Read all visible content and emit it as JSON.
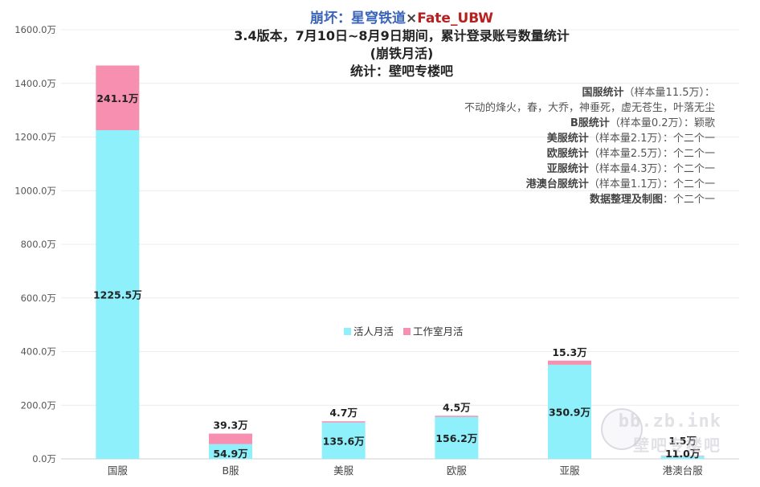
{
  "header": {
    "title_part1": "崩坏：星穹铁道",
    "title_sep": "×",
    "title_part2": "Fate_UBW",
    "line2": "3.4版本，7月10日~8月9日期间，累计登录账号数量统计",
    "line3": "(崩铁月活)",
    "line4": "统计：壁吧专楼吧"
  },
  "credits": [
    {
      "k": "国服统计",
      "v": "（样本量11.5万）："
    },
    {
      "k": "",
      "v": "不动的烽火，春，大乔，神垂死，虚无苍生，叶落无尘"
    },
    {
      "k": "B服统计",
      "v": "（样本量0.2万）：颖歌"
    },
    {
      "k": "美服统计",
      "v": "（样本量2.1万）：个二个一"
    },
    {
      "k": "欧服统计",
      "v": "（样本量2.5万）：个二个一"
    },
    {
      "k": "亚服统计",
      "v": "（样本量4.3万）：个二个一"
    },
    {
      "k": "港澳台服统计",
      "v": "（样本量1.1万）：个二个一"
    },
    {
      "k": "数据整理及制图",
      "v": "：个二个一"
    }
  ],
  "watermark": {
    "line1": "bb.zb.ink",
    "line2": "壁吧专楼吧"
  },
  "chart_data": {
    "type": "bar",
    "stacked": true,
    "categories": [
      "国服",
      "B服",
      "美服",
      "欧服",
      "亚服",
      "港澳台服"
    ],
    "series": [
      {
        "name": "活人月活",
        "color": "#8ef0fa",
        "values": [
          1225.5,
          54.9,
          135.6,
          156.2,
          350.9,
          11.0
        ],
        "labels": [
          "1225.5万",
          "54.9万",
          "135.6万",
          "156.2万",
          "350.9万",
          "11.0万"
        ]
      },
      {
        "name": "工作室月活",
        "color": "#f78fb0",
        "values": [
          241.1,
          39.3,
          4.7,
          4.5,
          15.3,
          1.5
        ],
        "labels": [
          "241.1万",
          "39.3万",
          "4.7万",
          "4.5万",
          "15.3万",
          "1.5万"
        ]
      }
    ],
    "yticks": [
      "0.0万",
      "200.0万",
      "400.0万",
      "600.0万",
      "800.0万",
      "1000.0万",
      "1200.0万",
      "1400.0万",
      "1600.0万"
    ],
    "ylim": [
      0,
      1600
    ],
    "grid": true,
    "legend_position": "center"
  }
}
